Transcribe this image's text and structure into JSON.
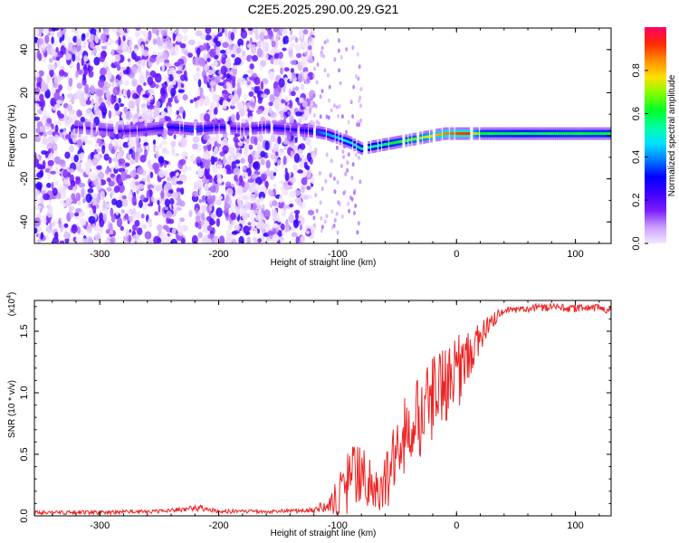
{
  "title": "C2E5.2025.290.00.29.G21",
  "chart_data": [
    {
      "type": "heatmap",
      "xlabel": "Height of straight line (km)",
      "ylabel": "Frequency (Hz)",
      "xlim": [
        -355,
        130
      ],
      "ylim": [
        -50,
        50
      ],
      "x_ticks": [
        -300,
        -200,
        -100,
        0,
        100
      ],
      "y_ticks": [
        -40,
        -20,
        0,
        20,
        40
      ],
      "colorbar": {
        "label": "Normalized spectral amplitude",
        "range": [
          0,
          1
        ],
        "ticks": [
          0.0,
          0.2,
          0.4,
          0.6,
          0.8
        ],
        "colors": [
          "#f3e8ff",
          "#c99cff",
          "#7a1cff",
          "#3e00ff",
          "#0000ff",
          "#007bff",
          "#00e1ff",
          "#00ffa0",
          "#00ff2a",
          "#7fff00",
          "#ffe000",
          "#ff8c00",
          "#ff2a00",
          "#ff0066"
        ]
      },
      "ridge": {
        "x": [
          -320,
          -300,
          -280,
          -260,
          -240,
          -220,
          -200,
          -180,
          -160,
          -140,
          -120,
          -110,
          -100,
          -90,
          -80,
          -70,
          -60,
          -50,
          -40,
          -30,
          -20,
          -10,
          0,
          10,
          20,
          40,
          60,
          80,
          100,
          130
        ],
        "y": [
          4,
          3,
          2,
          3,
          4,
          3,
          4,
          3,
          4,
          3,
          2,
          1,
          -1,
          -3,
          -6,
          -5,
          -4,
          -3,
          -2,
          -1,
          0,
          1,
          1,
          1,
          1,
          1,
          1,
          1,
          1,
          1
        ],
        "amplitude": [
          0.22,
          0.2,
          0.25,
          0.22,
          0.3,
          0.35,
          0.28,
          0.22,
          0.3,
          0.25,
          0.32,
          0.42,
          0.45,
          0.5,
          0.55,
          0.52,
          0.58,
          0.62,
          0.66,
          0.7,
          0.8,
          0.85,
          0.9,
          0.92,
          0.62,
          0.6,
          0.58,
          0.6,
          0.62,
          0.6
        ]
      },
      "noise_region_x": [
        -355,
        -120
      ]
    },
    {
      "type": "line",
      "xlabel": "Height of straight line (km)",
      "ylabel": "SNR (10 * v/v)",
      "y_scale_label": "(x10",
      "y_scale_exp": "4",
      "y_scale_close": ")",
      "xlim": [
        -355,
        130
      ],
      "ylim": [
        0,
        1.75
      ],
      "x_ticks": [
        -300,
        -200,
        -100,
        0,
        100
      ],
      "y_ticks": [
        0.0,
        0.5,
        1.0,
        1.5
      ],
      "y_tick_labels": [
        "0.0",
        "0.5",
        "1.0",
        "1.5"
      ],
      "series": [
        {
          "name": "SNR",
          "color": "#ee2222",
          "x": [
            -355,
            -300,
            -250,
            -215,
            -200,
            -150,
            -120,
            -105,
            -95,
            -88,
            -80,
            -72,
            -65,
            -58,
            -50,
            -45,
            -38,
            -30,
            -22,
            -15,
            -8,
            0,
            8,
            15,
            22,
            30,
            38,
            45,
            55,
            70,
            85,
            100,
            115,
            130
          ],
          "y": [
            0.03,
            0.03,
            0.04,
            0.07,
            0.04,
            0.04,
            0.05,
            0.12,
            0.25,
            0.45,
            0.38,
            0.3,
            0.2,
            0.35,
            0.6,
            0.7,
            0.85,
            0.9,
            1.0,
            1.1,
            1.15,
            1.2,
            1.35,
            1.42,
            1.5,
            1.6,
            1.66,
            1.68,
            1.69,
            1.7,
            1.7,
            1.69,
            1.7,
            1.68
          ],
          "spread": [
            0.02,
            0.02,
            0.02,
            0.03,
            0.02,
            0.02,
            0.03,
            0.1,
            0.35,
            0.35,
            0.3,
            0.25,
            0.2,
            0.3,
            0.35,
            0.4,
            0.45,
            0.45,
            0.45,
            0.4,
            0.4,
            0.4,
            0.3,
            0.25,
            0.15,
            0.08,
            0.05,
            0.04,
            0.04,
            0.04,
            0.04,
            0.04,
            0.04,
            0.04
          ]
        }
      ]
    }
  ]
}
